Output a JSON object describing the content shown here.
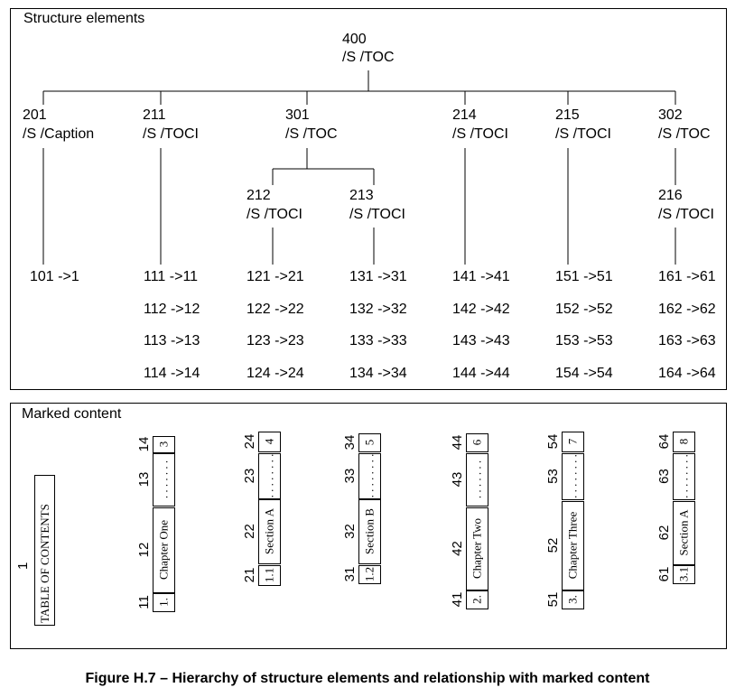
{
  "sections": {
    "structure_title": "Structure elements",
    "marked_title": "Marked content"
  },
  "root": {
    "id": "400",
    "type": "/S /TOC"
  },
  "level1": [
    {
      "id": "201",
      "type": "/S /Caption"
    },
    {
      "id": "211",
      "type": "/S /TOCI"
    },
    {
      "id": "301",
      "type": "/S /TOC"
    },
    {
      "id": "214",
      "type": "/S /TOCI"
    },
    {
      "id": "215",
      "type": "/S /TOCI"
    },
    {
      "id": "302",
      "type": "/S /TOC"
    }
  ],
  "level2": [
    {
      "id": "212",
      "type": "/S /TOCI"
    },
    {
      "id": "213",
      "type": "/S /TOCI"
    },
    {
      "id": "216",
      "type": "/S /TOCI"
    }
  ],
  "mappings": [
    [
      "101 ->1"
    ],
    [
      "111 ->11",
      "112 ->12",
      "113 ->13",
      "114 ->14"
    ],
    [
      "121 ->21",
      "122 ->22",
      "123 ->23",
      "124 ->24"
    ],
    [
      "131 ->31",
      "132 ->32",
      "133 ->33",
      "134 ->34"
    ],
    [
      "141 ->41",
      "142 ->42",
      "143 ->43",
      "144 ->44"
    ],
    [
      "151 ->51",
      "152 ->52",
      "153 ->53",
      "154 ->54"
    ],
    [
      "161 ->61",
      "162 ->62",
      "163 ->63",
      "164 ->64"
    ]
  ],
  "marked": {
    "toc": {
      "num": "1",
      "text": "TABLE OF CONTENTS"
    },
    "columns": [
      {
        "nums": [
          "11",
          "12",
          "13",
          "14"
        ],
        "texts": [
          "1.",
          "Chapter One",
          ". . . . . . .",
          "3"
        ]
      },
      {
        "nums": [
          "21",
          "22",
          "23",
          "24"
        ],
        "texts": [
          "1.1",
          "Section A",
          ". . . . . . . .",
          "4"
        ]
      },
      {
        "nums": [
          "31",
          "32",
          "33",
          "34"
        ],
        "texts": [
          "1.2",
          "Section B",
          ". . . . . . . .",
          "5"
        ]
      },
      {
        "nums": [
          "41",
          "42",
          "43",
          "44"
        ],
        "texts": [
          "2.",
          "Chapter Two",
          ". . . . . . .",
          "6"
        ]
      },
      {
        "nums": [
          "51",
          "52",
          "53",
          "54"
        ],
        "texts": [
          "3.",
          "Chapter Three",
          ". . . . . . . .",
          "7"
        ]
      },
      {
        "nums": [
          "61",
          "62",
          "63",
          "64"
        ],
        "texts": [
          "3.1",
          "Section A",
          ". . . . . . . .",
          "8"
        ]
      }
    ]
  },
  "caption": "Figure H.7 –  Hierarchy of structure elements and relationship with marked content"
}
